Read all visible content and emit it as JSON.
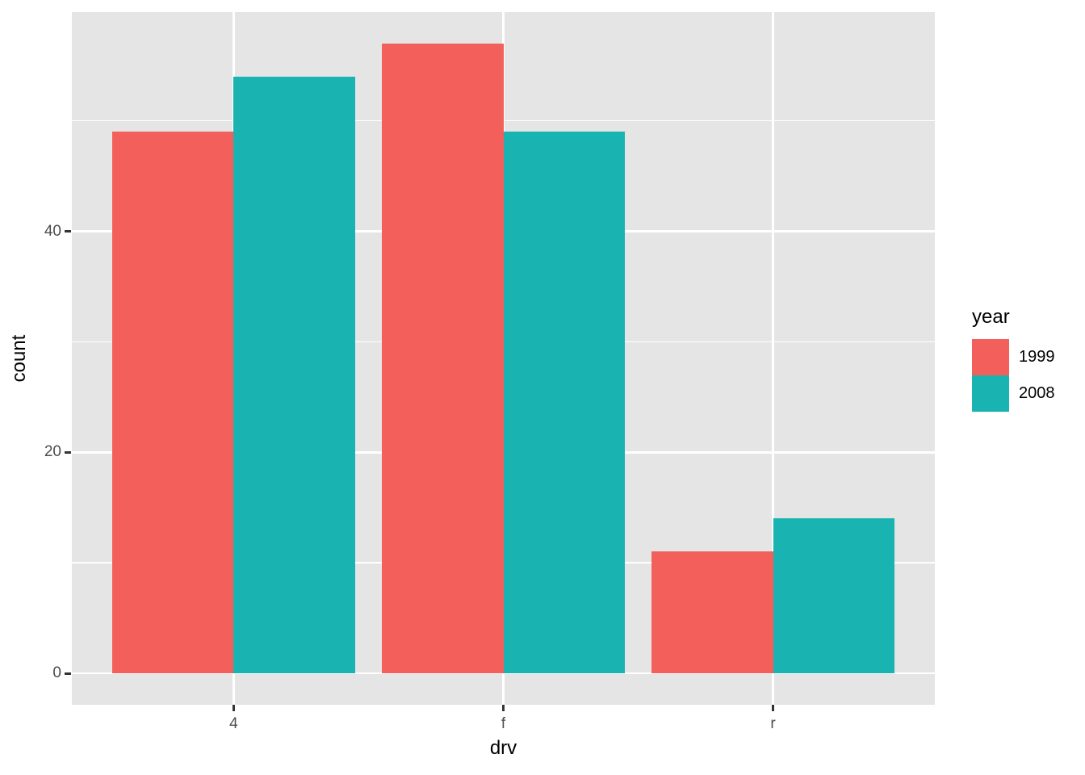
{
  "chart_data": {
    "type": "bar",
    "mode": "dodged",
    "title": "",
    "xlabel": "drv",
    "ylabel": "count",
    "categories": [
      "4",
      "f",
      "r"
    ],
    "series": [
      {
        "name": "1999",
        "color": "#F3605C",
        "values": [
          49,
          57,
          11
        ]
      },
      {
        "name": "2008",
        "color": "#19B4B1",
        "values": [
          54,
          49,
          14
        ]
      }
    ],
    "legend": {
      "title": "year",
      "position": "right"
    },
    "x_axis": {
      "tick_labels": [
        "4",
        "f",
        "r"
      ],
      "bar_width_units": 0.45,
      "domain": [
        0.4,
        3.6
      ]
    },
    "y_axis": {
      "ticks": [
        0,
        20,
        40
      ],
      "minor_ticks": [
        10,
        30,
        50
      ],
      "lim": [
        -2.85,
        59.85
      ]
    },
    "style": {
      "panel_bg": "#E5E5E5",
      "grid_color": "#FFFFFF",
      "tick_label_color": "#4D4D4D",
      "tick_mark_color": "#333333",
      "axis_title_color": "#000000",
      "background": "#FFFFFF"
    }
  }
}
